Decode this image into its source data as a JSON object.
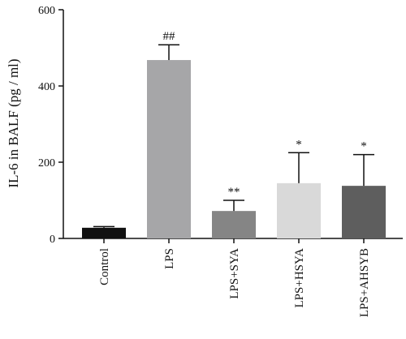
{
  "chart_data": {
    "type": "bar",
    "ylabel": "IL-6 in BALF (pg / ml)",
    "ylim": [
      0,
      600
    ],
    "yticks": [
      0,
      200,
      400,
      600
    ],
    "categories": [
      "Control",
      "LPS",
      "LPS+SYA",
      "LPS+HSYA",
      "LPS+AHSYB"
    ],
    "values": [
      28,
      468,
      72,
      145,
      138
    ],
    "errors": [
      3,
      40,
      28,
      80,
      82
    ],
    "significance": [
      "",
      "##",
      "**",
      "*",
      "*"
    ],
    "colors": [
      "#111111",
      "#a6a6a8",
      "#858585",
      "#d9d9d9",
      "#5e5e5e"
    ],
    "grid": false
  }
}
